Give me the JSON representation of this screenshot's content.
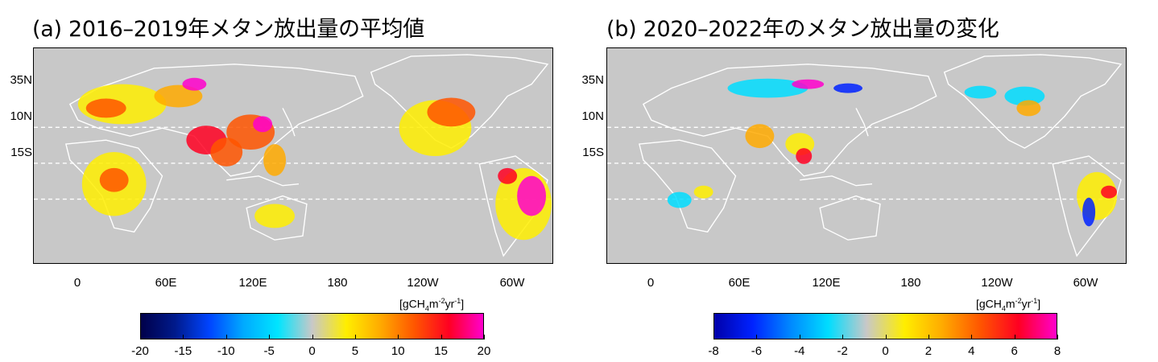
{
  "panel_a": {
    "title": "(a) 2016–2019年メタン放出量の平均値",
    "lat_labels": [
      "35N",
      "10N",
      "15S"
    ],
    "lon_labels": [
      "0",
      "60E",
      "120E",
      "180",
      "120W",
      "60W"
    ],
    "colorbar": {
      "unit_prefix": "[gCH",
      "unit_sub": "4",
      "unit_mid": "m",
      "unit_sup1": "-2",
      "unit_mid2": "yr",
      "unit_sup2": "-1",
      "unit_suffix": "]",
      "ticks": [
        "-20",
        "-15",
        "-10",
        "-5",
        "0",
        "5",
        "10",
        "15",
        "20"
      ],
      "range": [
        -20,
        20
      ],
      "colors": [
        "#00004a",
        "#001a8c",
        "#0044ff",
        "#00aaff",
        "#00e5ff",
        "#c8c8c8",
        "#ffee00",
        "#ffaa00",
        "#ff5500",
        "#ff0022",
        "#ff00cc"
      ]
    }
  },
  "panel_b": {
    "title": "(b) 2020–2022年のメタン放出量の変化",
    "lat_labels": [
      "35N",
      "10N",
      "15S"
    ],
    "lon_labels": [
      "0",
      "60E",
      "120E",
      "180",
      "120W",
      "60W"
    ],
    "colorbar": {
      "unit_prefix": "[gCH",
      "unit_sub": "4",
      "unit_mid": "m",
      "unit_sup1": "-2",
      "unit_mid2": "yr",
      "unit_sup2": "-1",
      "unit_suffix": "]",
      "ticks": [
        "-8",
        "-6",
        "-4",
        "-2",
        "0",
        "2",
        "4",
        "6",
        "8"
      ],
      "range": [
        -8,
        8
      ],
      "colors": [
        "#0000aa",
        "#0022ff",
        "#0088ff",
        "#00ddff",
        "#c8c8c8",
        "#ffee00",
        "#ffaa00",
        "#ff5500",
        "#ff0022",
        "#ff00cc"
      ]
    }
  },
  "map_style": {
    "background": "#c8c8c8",
    "coastline": "#ffffff",
    "latitude_line": "#ffffff"
  }
}
